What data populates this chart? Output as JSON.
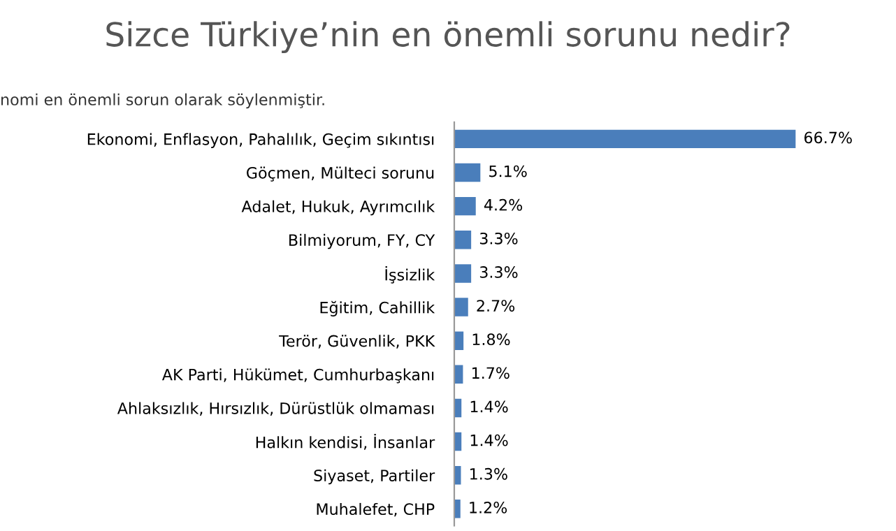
{
  "chart_data": {
    "type": "bar",
    "orientation": "horizontal",
    "title": "Sizce Türkiye’nin en önemli sorunu nedir?",
    "subtitle": "nomi en önemli sorun olarak söylenmiştir.",
    "categories": [
      "Ekonomi, Enflasyon, Pahalılık, Geçim sıkıntısı",
      "Göçmen, Mülteci sorunu",
      "Adalet, Hukuk, Ayrımcılık",
      "Bilmiyorum, FY, CY",
      "İşsizlik",
      "Eğitim, Cahillik",
      "Terör, Güvenlik, PKK",
      "AK Parti, Hükümet, Cumhurbaşkanı",
      "Ahlaksızlık, Hırsızlık, Dürüstlük olmaması",
      "Halkın kendisi, İnsanlar",
      "Siyaset, Partiler",
      "Muhalefet, CHP"
    ],
    "values": [
      66.7,
      5.1,
      4.2,
      3.3,
      3.3,
      2.7,
      1.8,
      1.7,
      1.4,
      1.4,
      1.3,
      1.2
    ],
    "value_labels": [
      "66.7%",
      "5.1%",
      "4.2%",
      "3.3%",
      "3.3%",
      "2.7%",
      "1.8%",
      "1.7%",
      "1.4%",
      "1.4%",
      "1.3%",
      "1.2%"
    ],
    "color": "#4a7ebb",
    "grid": false,
    "legend": false
  }
}
